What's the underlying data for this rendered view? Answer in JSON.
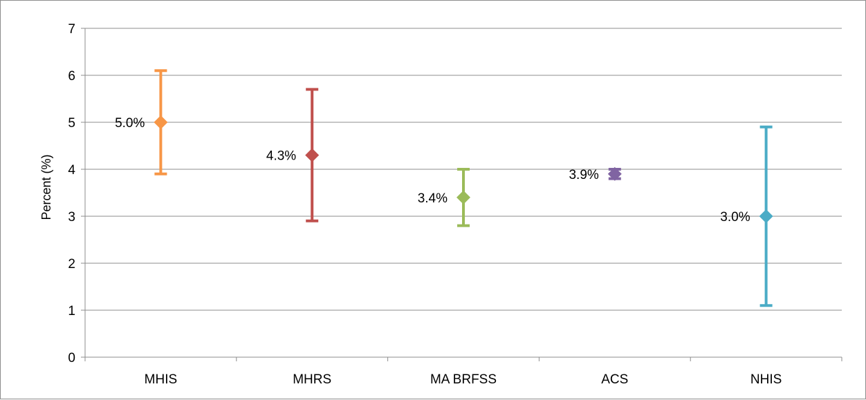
{
  "chart_data": {
    "type": "scatter",
    "title": "",
    "xlabel": "",
    "ylabel": "Percent (%)",
    "ylim": [
      0,
      7
    ],
    "yticks": [
      0,
      1,
      2,
      3,
      4,
      5,
      6,
      7
    ],
    "grid": true,
    "legend": "none",
    "categories": [
      "MHIS",
      "MHRS",
      "MA BRFSS",
      "ACS",
      "NHIS"
    ],
    "points": [
      {
        "category": "MHIS",
        "value": 5.0,
        "lower": 3.9,
        "upper": 6.1,
        "label": "5.0%",
        "color": "#F79646"
      },
      {
        "category": "MHRS",
        "value": 4.3,
        "lower": 2.9,
        "upper": 5.7,
        "label": "4.3%",
        "color": "#C0504D"
      },
      {
        "category": "MA BRFSS",
        "value": 3.4,
        "lower": 2.8,
        "upper": 4.0,
        "label": "3.4%",
        "color": "#9BBB59"
      },
      {
        "category": "ACS",
        "value": 3.9,
        "lower": 3.8,
        "upper": 4.0,
        "label": "3.9%",
        "color": "#8064A2"
      },
      {
        "category": "NHIS",
        "value": 3.0,
        "lower": 1.1,
        "upper": 4.9,
        "label": "3.0%",
        "color": "#4BACC6"
      }
    ]
  }
}
